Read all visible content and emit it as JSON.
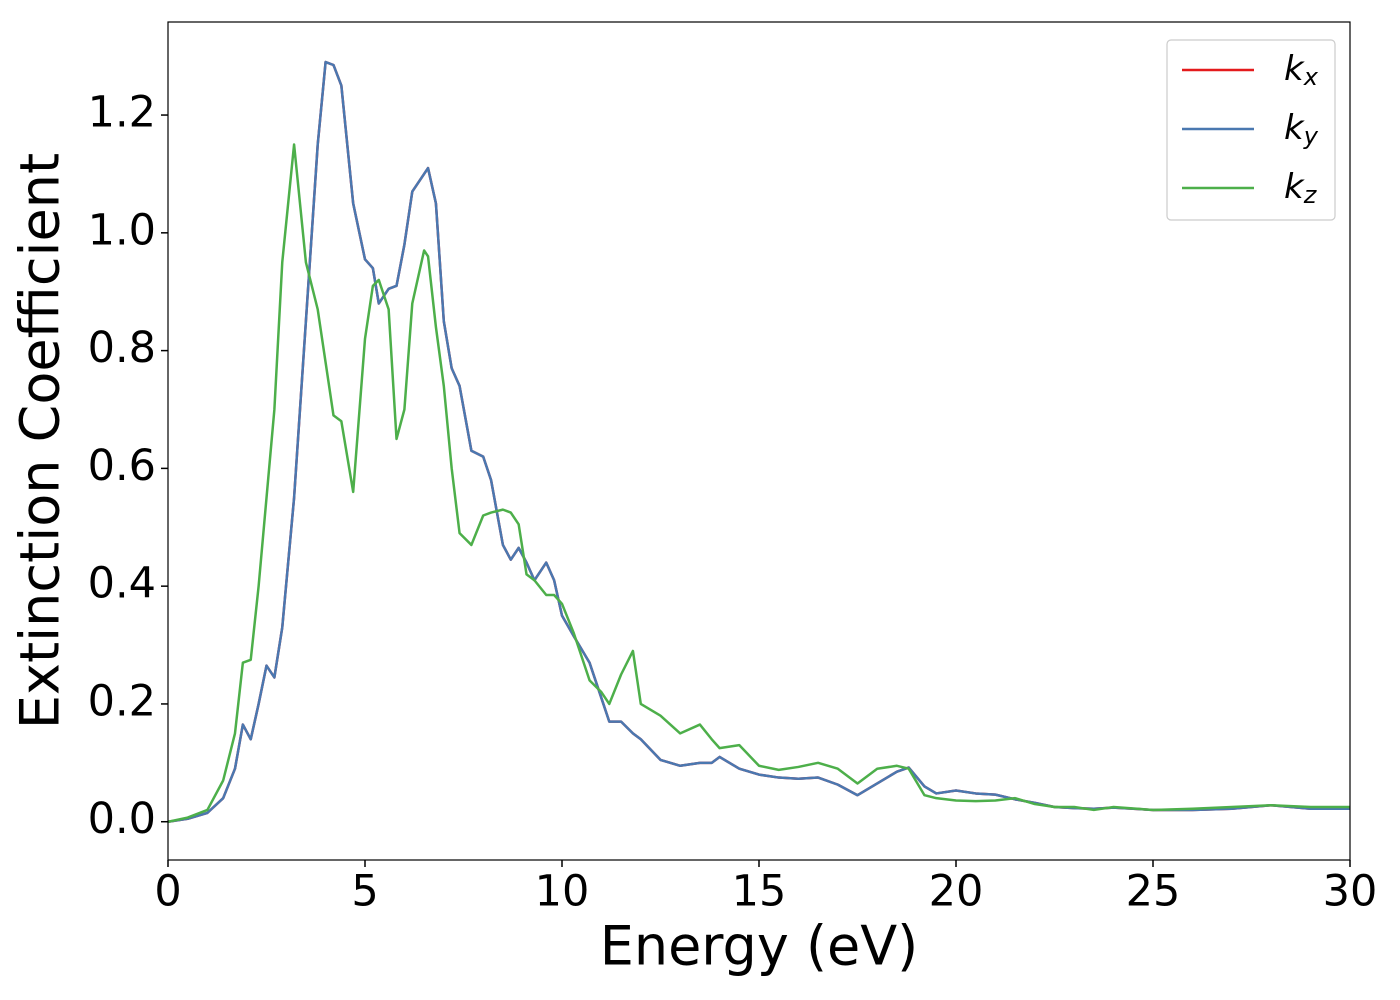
{
  "chart_data": {
    "type": "line",
    "xlabel": "Energy (eV)",
    "ylabel": "Extinction Coefficient",
    "x": [
      0,
      0.5,
      1.0,
      1.4,
      1.7,
      1.9,
      2.1,
      2.3,
      2.5,
      2.7,
      2.9,
      3.2,
      3.5,
      3.8,
      4.0,
      4.2,
      4.4,
      4.7,
      5.0,
      5.2,
      5.35,
      5.6,
      5.8,
      6.0,
      6.2,
      6.5,
      6.6,
      6.8,
      7.0,
      7.2,
      7.4,
      7.7,
      8.0,
      8.2,
      8.5,
      8.7,
      8.9,
      9.1,
      9.3,
      9.6,
      9.8,
      10.0,
      10.3,
      10.7,
      11.0,
      11.2,
      11.5,
      11.8,
      12.0,
      12.5,
      13.0,
      13.5,
      13.8,
      14.0,
      14.5,
      15,
      15.5,
      16,
      16.5,
      17,
      17.5,
      18,
      18.5,
      18.8,
      19.2,
      19.5,
      20,
      20.5,
      21,
      21.5,
      22,
      22.5,
      23,
      23.5,
      24,
      25,
      26,
      27,
      28,
      29,
      30
    ],
    "series": [
      {
        "name": "kx",
        "color": "#e41a1c",
        "values": [
          0,
          0.005,
          0.015,
          0.04,
          0.09,
          0.165,
          0.14,
          0.2,
          0.265,
          0.245,
          0.33,
          0.55,
          0.85,
          1.15,
          1.29,
          1.285,
          1.25,
          1.05,
          0.955,
          0.94,
          0.88,
          0.905,
          0.91,
          0.98,
          1.07,
          1.1,
          1.11,
          1.05,
          0.85,
          0.77,
          0.74,
          0.63,
          0.62,
          0.58,
          0.47,
          0.445,
          0.465,
          0.44,
          0.41,
          0.44,
          0.41,
          0.35,
          0.315,
          0.27,
          0.21,
          0.17,
          0.17,
          0.15,
          0.14,
          0.105,
          0.095,
          0.1,
          0.1,
          0.11,
          0.09,
          0.08,
          0.075,
          0.073,
          0.075,
          0.063,
          0.045,
          0.065,
          0.085,
          0.092,
          0.06,
          0.048,
          0.053,
          0.048,
          0.046,
          0.038,
          0.032,
          0.025,
          0.023,
          0.022,
          0.024,
          0.02,
          0.02,
          0.022,
          0.028,
          0.022,
          0.022
        ]
      },
      {
        "name": "ky",
        "color": "#4a78b0",
        "values": [
          0,
          0.005,
          0.015,
          0.04,
          0.09,
          0.165,
          0.14,
          0.2,
          0.265,
          0.245,
          0.33,
          0.55,
          0.85,
          1.15,
          1.29,
          1.285,
          1.25,
          1.05,
          0.955,
          0.94,
          0.88,
          0.905,
          0.91,
          0.98,
          1.07,
          1.1,
          1.11,
          1.05,
          0.85,
          0.77,
          0.74,
          0.63,
          0.62,
          0.58,
          0.47,
          0.445,
          0.465,
          0.44,
          0.41,
          0.44,
          0.41,
          0.35,
          0.315,
          0.27,
          0.21,
          0.17,
          0.17,
          0.15,
          0.14,
          0.105,
          0.095,
          0.1,
          0.1,
          0.11,
          0.09,
          0.08,
          0.075,
          0.073,
          0.075,
          0.063,
          0.045,
          0.065,
          0.085,
          0.092,
          0.06,
          0.048,
          0.053,
          0.048,
          0.046,
          0.038,
          0.032,
          0.025,
          0.023,
          0.022,
          0.024,
          0.02,
          0.02,
          0.022,
          0.028,
          0.022,
          0.022
        ]
      },
      {
        "name": "kz",
        "color": "#4daf4a",
        "values": [
          0,
          0.007,
          0.02,
          0.07,
          0.15,
          0.27,
          0.275,
          0.4,
          0.55,
          0.7,
          0.95,
          1.15,
          0.95,
          0.87,
          0.78,
          0.69,
          0.68,
          0.56,
          0.82,
          0.91,
          0.92,
          0.87,
          0.65,
          0.7,
          0.88,
          0.97,
          0.96,
          0.84,
          0.74,
          0.6,
          0.49,
          0.47,
          0.52,
          0.525,
          0.53,
          0.525,
          0.505,
          0.42,
          0.41,
          0.385,
          0.385,
          0.37,
          0.32,
          0.24,
          0.22,
          0.2,
          0.25,
          0.29,
          0.2,
          0.18,
          0.15,
          0.165,
          0.14,
          0.125,
          0.13,
          0.095,
          0.088,
          0.093,
          0.1,
          0.09,
          0.065,
          0.09,
          0.095,
          0.09,
          0.045,
          0.04,
          0.036,
          0.035,
          0.036,
          0.04,
          0.03,
          0.025,
          0.025,
          0.02,
          0.025,
          0.02,
          0.022,
          0.025,
          0.028,
          0.025,
          0.025
        ]
      }
    ],
    "xlim": [
      0,
      30
    ],
    "xticks": [
      0,
      5,
      10,
      15,
      20,
      25,
      30
    ],
    "ylim": [
      -0.065,
      1.358
    ],
    "yticks": [
      {
        "value": 0,
        "label": "0.0"
      },
      {
        "value": 0.2,
        "label": "0.2"
      },
      {
        "value": 0.4,
        "label": "0.4"
      },
      {
        "value": 0.6,
        "label": "0.6"
      },
      {
        "value": 0.8,
        "label": "0.8"
      },
      {
        "value": 1.0,
        "label": "1.0"
      },
      {
        "value": 1.2,
        "label": "1.2"
      }
    ],
    "grid": false,
    "legend": "upper right"
  }
}
